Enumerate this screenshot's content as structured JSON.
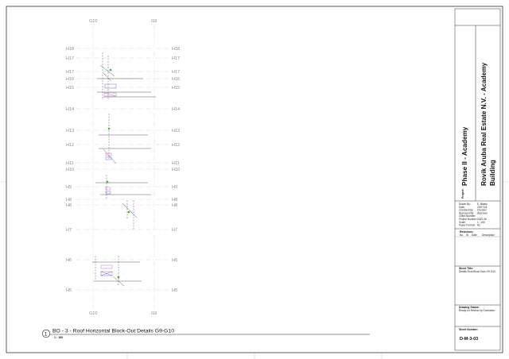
{
  "view": {
    "title": "BO - 3 - Roof Horizontal Block-Out Details G9-G10",
    "number": "1",
    "scale": "1 : 100"
  },
  "grid": {
    "columns": [
      "G10",
      "G9"
    ],
    "rows": [
      "H18",
      "H17",
      "H17",
      "H16",
      "H15",
      "H14",
      "H13",
      "H12",
      "H11",
      "H10",
      "H9",
      "H8",
      "H8",
      "H7",
      "H6",
      "H5"
    ]
  },
  "titleblock": {
    "project_label": "Project:",
    "project_name": "Phase II - Academy",
    "client_name": "Rovik Aruba Real Estate N.V. - Academy Building",
    "fields": [
      {
        "label": "Drawn By:",
        "value": "E. Bastio"
      },
      {
        "label": "Date:",
        "value": "20/07/24"
      },
      {
        "label": "Checked By:",
        "value": "Checker"
      },
      {
        "label": "Approved By:",
        "value": "Approver"
      },
      {
        "label": "Client Number:",
        "value": ""
      },
      {
        "label": "Project Number:",
        "value": "2020-06"
      },
      {
        "label": "Scale:",
        "value": "1 : 100"
      },
      {
        "label": "Paper Format:",
        "value": "A1"
      }
    ],
    "revisions_label": "Revisions:",
    "revision_columns": [
      "No.",
      "ID",
      "Date",
      "Description"
    ],
    "sheet_title_label": "Sheet Title:",
    "sheet_title": "Details Roof Block Outs G9-G10",
    "drawing_status_label": "Drawing Status:",
    "drawing_status": "Ready for Review by Contractor",
    "sheet_number_label": "Sheet Number:",
    "sheet_number": "D-M-3-03"
  }
}
